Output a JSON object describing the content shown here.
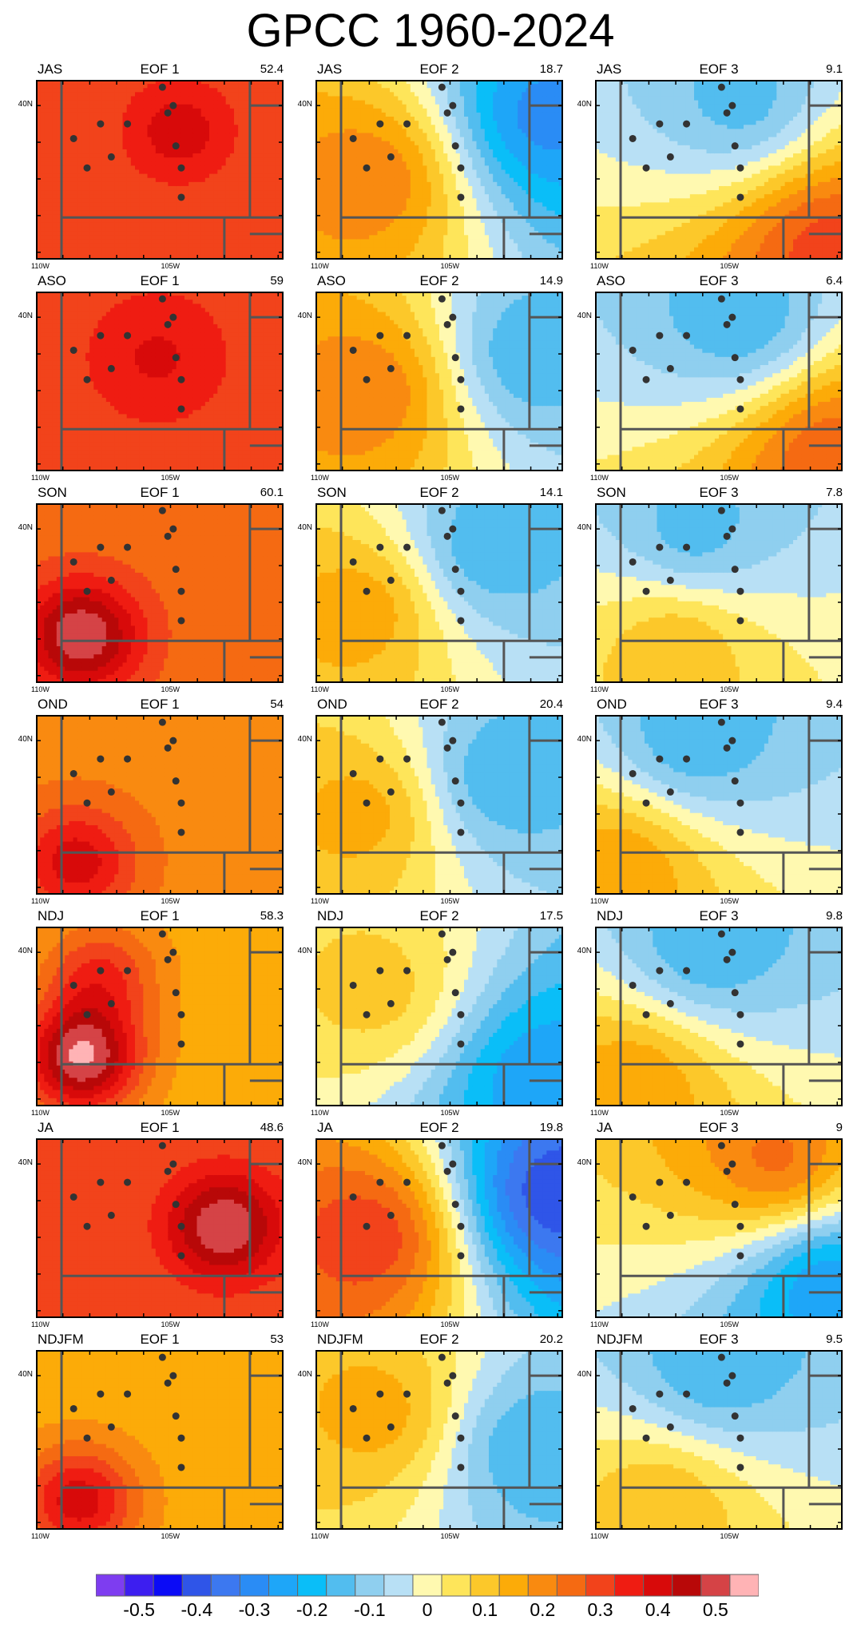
{
  "title": "GPCC 1960-2024",
  "rows": [
    {
      "season": "JAS",
      "pcts": [
        "52.4",
        "18.7",
        "9.1"
      ]
    },
    {
      "season": "ASO",
      "pcts": [
        "59",
        "14.9",
        "6.4"
      ]
    },
    {
      "season": "SON",
      "pcts": [
        "60.1",
        "14.1",
        "7.8"
      ]
    },
    {
      "season": "OND",
      "pcts": [
        "54",
        "20.4",
        "9.4"
      ]
    },
    {
      "season": "NDJ",
      "pcts": [
        "58.3",
        "17.5",
        "9.8"
      ]
    },
    {
      "season": "JA",
      "pcts": [
        "48.6",
        "19.8",
        "9"
      ]
    },
    {
      "season": "NDJFM",
      "pcts": [
        "53",
        "20.2",
        "9.5"
      ]
    }
  ],
  "eof_labels": [
    "EOF 1",
    "EOF 2",
    "EOF 3"
  ],
  "axis_labels": {
    "lat": "40N",
    "lon_left": "110W",
    "lon_mid": "105W"
  },
  "map_extent": {
    "lon_min": -110,
    "lon_max": -100.8,
    "lat_min": 35.8,
    "lat_max": 40.7
  },
  "stations": [
    {
      "lon": -108.6,
      "lat": 39.1
    },
    {
      "lon": -108.1,
      "lat": 38.3
    },
    {
      "lon": -107.6,
      "lat": 39.5
    },
    {
      "lon": -107.2,
      "lat": 38.6
    },
    {
      "lon": -106.6,
      "lat": 39.5
    },
    {
      "lon": -105.3,
      "lat": 40.5
    },
    {
      "lon": -105.1,
      "lat": 39.8
    },
    {
      "lon": -104.9,
      "lat": 40.0
    },
    {
      "lon": -104.8,
      "lat": 38.9
    },
    {
      "lon": -104.6,
      "lat": 38.3
    },
    {
      "lon": -104.6,
      "lat": 37.5
    }
  ],
  "chart_data": {
    "type": "heatmap",
    "title": "GPCC 1960-2024",
    "colorbar": {
      "levels": [
        -0.55,
        -0.5,
        -0.45,
        -0.4,
        -0.35,
        -0.3,
        -0.25,
        -0.2,
        -0.15,
        -0.1,
        -0.05,
        0,
        0.05,
        0.1,
        0.15,
        0.2,
        0.25,
        0.3,
        0.35,
        0.4,
        0.45,
        0.5,
        0.55
      ],
      "tick_labels": [
        "-0.5",
        "-0.4",
        "-0.3",
        "-0.2",
        "-0.1",
        "0",
        "0.1",
        "0.2",
        "0.3",
        "0.4",
        "0.5"
      ],
      "tick_values": [
        -0.5,
        -0.4,
        -0.3,
        -0.2,
        -0.1,
        0,
        0.1,
        0.2,
        0.3,
        0.4,
        0.5
      ],
      "colors": [
        "#7e3df0",
        "#3d1ef0",
        "#0b0bf6",
        "#2f55e8",
        "#3c78f0",
        "#2a8cf5",
        "#1ea6f8",
        "#0abef8",
        "#52bdef",
        "#8fcfef",
        "#b8e0f5",
        "#fff9b0",
        "#fee55a",
        "#fcc82a",
        "#fcab08",
        "#f98a10",
        "#f56a12",
        "#f2431b",
        "#ef1c12",
        "#d80a0a",
        "#b80808",
        "#d54346",
        "#ffb3b5"
      ]
    },
    "panels": [
      {
        "season": "JAS",
        "eof": 1,
        "variance_pct": 52.4,
        "centers": [
          {
            "lon": -104.7,
            "lat": 39.3,
            "value": 0.38
          }
        ],
        "base": 0.25,
        "corner": {
          "lon": -101,
          "lat": 36,
          "value": 0.25
        }
      },
      {
        "season": "JAS",
        "eof": 2,
        "variance_pct": 18.7,
        "centers": [
          {
            "lon": -108.0,
            "lat": 38.0,
            "value": 0.2
          },
          {
            "lon": -101.4,
            "lat": 39.7,
            "value": -0.33
          }
        ],
        "gradient": true
      },
      {
        "season": "JAS",
        "eof": 3,
        "variance_pct": 9.1,
        "centers": [
          {
            "lon": -104.6,
            "lat": 40.2,
            "value": -0.18
          },
          {
            "lon": -101.4,
            "lat": 36.1,
            "value": 0.28
          }
        ],
        "gradient": true
      },
      {
        "season": "ASO",
        "eof": 1,
        "variance_pct": 59,
        "centers": [
          {
            "lon": -105.5,
            "lat": 38.9,
            "value": 0.36
          }
        ],
        "base": 0.28
      },
      {
        "season": "ASO",
        "eof": 2,
        "variance_pct": 14.9,
        "centers": [
          {
            "lon": -108.0,
            "lat": 38.0,
            "value": 0.2
          },
          {
            "lon": -102.0,
            "lat": 39.0,
            "value": -0.2
          }
        ],
        "gradient": true
      },
      {
        "season": "ASO",
        "eof": 3,
        "variance_pct": 6.4,
        "centers": [
          {
            "lon": -104.6,
            "lat": 40.0,
            "value": -0.2
          },
          {
            "lon": -101.2,
            "lat": 36.2,
            "value": 0.25
          }
        ],
        "gradient": true
      },
      {
        "season": "SON",
        "eof": 1,
        "variance_pct": 60.1,
        "centers": [
          {
            "lon": -108.3,
            "lat": 37.1,
            "value": 0.5
          }
        ],
        "base": 0.22
      },
      {
        "season": "SON",
        "eof": 2,
        "variance_pct": 14.1,
        "centers": [
          {
            "lon": -108.3,
            "lat": 37.8,
            "value": 0.14
          },
          {
            "lon": -103.5,
            "lat": 39.5,
            "value": -0.2
          }
        ],
        "gradient": true
      },
      {
        "season": "SON",
        "eof": 3,
        "variance_pct": 7.8,
        "centers": [
          {
            "lon": -106.3,
            "lat": 40.0,
            "value": -0.18
          },
          {
            "lon": -107.0,
            "lat": 36.7,
            "value": 0.1
          }
        ],
        "gradient": true
      },
      {
        "season": "OND",
        "eof": 1,
        "variance_pct": 54,
        "centers": [
          {
            "lon": -108.5,
            "lat": 36.7,
            "value": 0.38
          }
        ],
        "base": 0.18
      },
      {
        "season": "OND",
        "eof": 2,
        "variance_pct": 20.4,
        "centers": [
          {
            "lon": -108.3,
            "lat": 38.0,
            "value": 0.13
          },
          {
            "lon": -103.0,
            "lat": 39.0,
            "value": -0.2
          }
        ],
        "gradient": true
      },
      {
        "season": "OND",
        "eof": 3,
        "variance_pct": 9.4,
        "centers": [
          {
            "lon": -106.3,
            "lat": 40.1,
            "value": -0.2
          },
          {
            "lon": -109.0,
            "lat": 36.5,
            "value": 0.15
          }
        ],
        "gradient": true
      },
      {
        "season": "NDJ",
        "eof": 1,
        "variance_pct": 58.3,
        "centers": [
          {
            "lon": -108.3,
            "lat": 37.1,
            "value": 0.5
          },
          {
            "lon": -107.6,
            "lat": 39.4,
            "value": 0.3
          }
        ],
        "base": 0.12
      },
      {
        "season": "NDJ",
        "eof": 2,
        "variance_pct": 17.5,
        "centers": [
          {
            "lon": -107.8,
            "lat": 39.0,
            "value": 0.08
          },
          {
            "lon": -101.5,
            "lat": 36.5,
            "value": -0.3
          }
        ],
        "gradient": true
      },
      {
        "season": "NDJ",
        "eof": 3,
        "variance_pct": 9.8,
        "centers": [
          {
            "lon": -105.8,
            "lat": 40.2,
            "value": -0.2
          },
          {
            "lon": -108.5,
            "lat": 36.4,
            "value": 0.15
          }
        ],
        "gradient": true
      },
      {
        "season": "JA",
        "eof": 1,
        "variance_pct": 48.6,
        "centers": [
          {
            "lon": -103.0,
            "lat": 38.3,
            "value": 0.5
          }
        ],
        "base": 0.25
      },
      {
        "season": "JA",
        "eof": 2,
        "variance_pct": 19.8,
        "centers": [
          {
            "lon": -108.1,
            "lat": 38.0,
            "value": 0.3
          },
          {
            "lon": -101.0,
            "lat": 39.2,
            "value": -0.45
          }
        ],
        "gradient": true
      },
      {
        "season": "JA",
        "eof": 3,
        "variance_pct": 9,
        "centers": [
          {
            "lon": -103.3,
            "lat": 40.2,
            "value": 0.22
          },
          {
            "lon": -101.3,
            "lat": 36.6,
            "value": -0.3
          }
        ],
        "gradient": true
      },
      {
        "season": "NDJFM",
        "eof": 1,
        "variance_pct": 53,
        "centers": [
          {
            "lon": -108.4,
            "lat": 36.6,
            "value": 0.38
          }
        ],
        "base": 0.12
      },
      {
        "season": "NDJFM",
        "eof": 2,
        "variance_pct": 20.2,
        "centers": [
          {
            "lon": -107.7,
            "lat": 39.0,
            "value": 0.13
          },
          {
            "lon": -102.0,
            "lat": 38.0,
            "value": -0.2
          }
        ],
        "gradient": true
      },
      {
        "season": "NDJFM",
        "eof": 3,
        "variance_pct": 9.5,
        "centers": [
          {
            "lon": -105.5,
            "lat": 40.3,
            "value": -0.2
          },
          {
            "lon": -107.5,
            "lat": 36.4,
            "value": 0.1
          }
        ],
        "gradient": true
      }
    ]
  }
}
